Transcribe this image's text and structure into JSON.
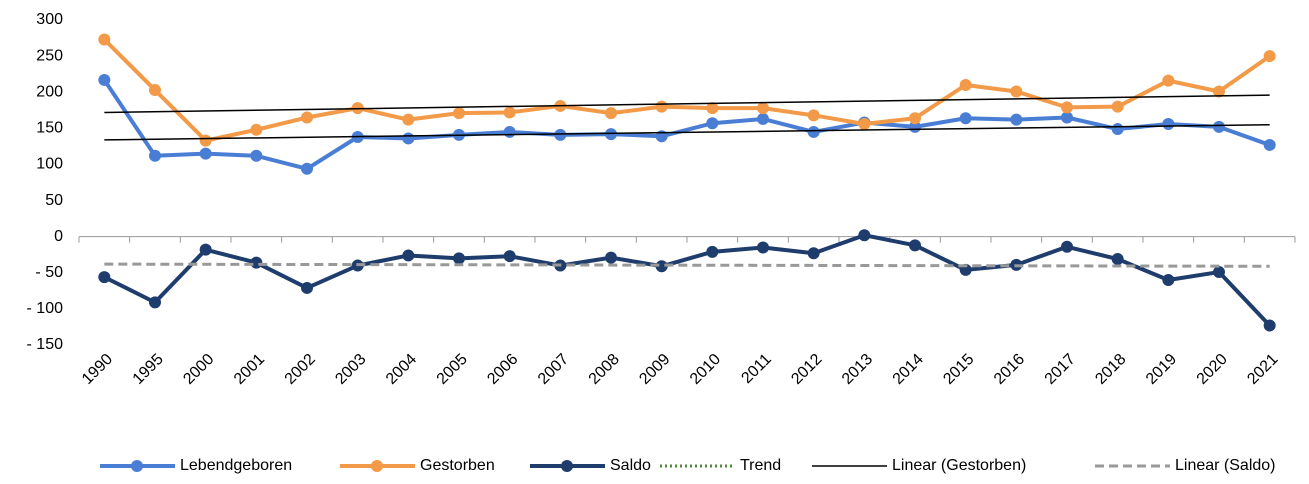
{
  "chart_data": {
    "type": "line",
    "categories": [
      "1990",
      "1995",
      "2000",
      "2001",
      "2002",
      "2003",
      "2004",
      "2005",
      "2006",
      "2007",
      "2008",
      "2009",
      "2010",
      "2011",
      "2012",
      "2013",
      "2014",
      "2015",
      "2016",
      "2017",
      "2018",
      "2019",
      "2020",
      "2021"
    ],
    "series": [
      {
        "name": "Lebendgeboren",
        "color": "#4a7ed4",
        "values": [
          217,
          112,
          115,
          112,
          94,
          138,
          136,
          141,
          145,
          141,
          142,
          139,
          157,
          163,
          145,
          158,
          152,
          164,
          162,
          165,
          149,
          156,
          152,
          127
        ]
      },
      {
        "name": "Gestorben",
        "color": "#f39a48",
        "values": [
          273,
          203,
          133,
          148,
          165,
          178,
          162,
          171,
          172,
          181,
          171,
          180,
          178,
          178,
          168,
          156,
          164,
          210,
          201,
          179,
          180,
          216,
          201,
          250
        ]
      },
      {
        "name": "Saldo",
        "color": "#1f3d6c",
        "values": [
          -56,
          -91,
          -18,
          -36,
          -71,
          -40,
          -26,
          -30,
          -27,
          -40,
          -29,
          -41,
          -21,
          -15,
          -23,
          2,
          -12,
          -46,
          -39,
          -14,
          -31,
          -60,
          -49,
          -123
        ]
      }
    ],
    "trendlines": [
      {
        "name": "Trend",
        "color": "#4e8a3a",
        "dash": "dotted"
      },
      {
        "name": "Linear (Gestorben)",
        "color": "#000000",
        "dash": "solid",
        "values": [
          172,
          196
        ]
      },
      {
        "color": "#000000",
        "dash": "solid",
        "values": [
          134,
          155
        ]
      },
      {
        "name": "Linear (Saldo)",
        "color": "#999999",
        "dash": "dashed",
        "values": [
          -38,
          -41
        ]
      }
    ],
    "ylim": [
      -150,
      300
    ],
    "yticks": [
      300,
      250,
      200,
      150,
      100,
      50,
      0,
      {
        "value": -50,
        "label": "- 50"
      },
      {
        "value": -100,
        "label": "- 100"
      },
      {
        "value": -150,
        "label": "- 150"
      }
    ],
    "grid": false
  }
}
